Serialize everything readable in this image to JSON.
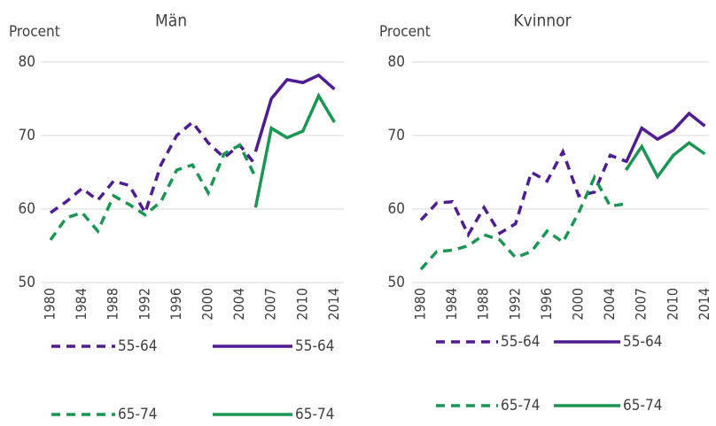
{
  "chart_data": [
    {
      "type": "line",
      "title": "Män",
      "ylabel": "Procent",
      "categories": [
        "1980",
        null,
        "1984",
        null,
        "1988",
        null,
        "1992",
        null,
        "1996",
        null,
        "2000",
        null,
        "2004",
        null,
        "2007",
        null,
        "2010",
        null,
        "2014"
      ],
      "ylim": [
        50,
        80
      ],
      "yticks": [
        50,
        60,
        70,
        80
      ],
      "grid": true,
      "series": [
        {
          "name": "55-64",
          "color": "#4f1c94",
          "dashed": true,
          "values": [
            59.5,
            61,
            62.8,
            61.2,
            63.8,
            63.2,
            59.5,
            66,
            70,
            71.8,
            69,
            67,
            68.7,
            66,
            null,
            null,
            null,
            null,
            null
          ]
        },
        {
          "name": "55-64",
          "color": "#4f1c94",
          "dashed": false,
          "values": [
            null,
            null,
            null,
            null,
            null,
            null,
            null,
            null,
            null,
            null,
            null,
            null,
            null,
            67.8,
            75,
            77.6,
            77.2,
            78.2,
            76.3
          ]
        },
        {
          "name": "65-74",
          "color": "#1a9653",
          "dashed": true,
          "values": [
            55.8,
            58.8,
            59.5,
            57,
            61.8,
            60.6,
            59.2,
            61,
            65.3,
            66,
            62.2,
            67.5,
            68.7,
            64.3,
            null,
            null,
            null,
            null,
            null
          ]
        },
        {
          "name": "65-74",
          "color": "#1a9653",
          "dashed": false,
          "values": [
            null,
            null,
            null,
            null,
            null,
            null,
            null,
            null,
            null,
            null,
            null,
            null,
            null,
            60.2,
            71,
            69.7,
            70.6,
            75.4,
            71.8
          ]
        }
      ]
    },
    {
      "type": "line",
      "title": "Kvinnor",
      "ylabel": "Procent",
      "categories": [
        "1980",
        null,
        "1984",
        null,
        "1988",
        null,
        "1992",
        null,
        "1996",
        null,
        "2000",
        null,
        "2004",
        null,
        "2007",
        null,
        "2010",
        null,
        "2014"
      ],
      "ylim": [
        50,
        80
      ],
      "yticks": [
        50,
        60,
        70,
        80
      ],
      "grid": true,
      "series": [
        {
          "name": "55-64",
          "color": "#4f1c94",
          "dashed": true,
          "values": [
            58.5,
            60.8,
            61,
            56.5,
            60.2,
            56.7,
            58,
            65,
            63.8,
            67.8,
            61.8,
            62.3,
            67.3,
            66.5,
            null,
            null,
            null,
            null,
            null
          ]
        },
        {
          "name": "55-64",
          "color": "#4f1c94",
          "dashed": false,
          "values": [
            null,
            null,
            null,
            null,
            null,
            null,
            null,
            null,
            null,
            null,
            null,
            null,
            null,
            66.3,
            71,
            69.5,
            70.7,
            73,
            71.3
          ]
        },
        {
          "name": "65-74",
          "color": "#1a9653",
          "dashed": true,
          "values": [
            51.8,
            54.2,
            54.4,
            55,
            56.5,
            55.8,
            53.4,
            54.2,
            57,
            55.5,
            59.5,
            64.3,
            60.4,
            60.7,
            null,
            null,
            null,
            null,
            null
          ]
        },
        {
          "name": "65-74",
          "color": "#1a9653",
          "dashed": false,
          "values": [
            null,
            null,
            null,
            null,
            null,
            null,
            null,
            null,
            null,
            null,
            null,
            null,
            null,
            65.3,
            68.5,
            64.4,
            67.3,
            69,
            67.5
          ]
        }
      ]
    }
  ]
}
